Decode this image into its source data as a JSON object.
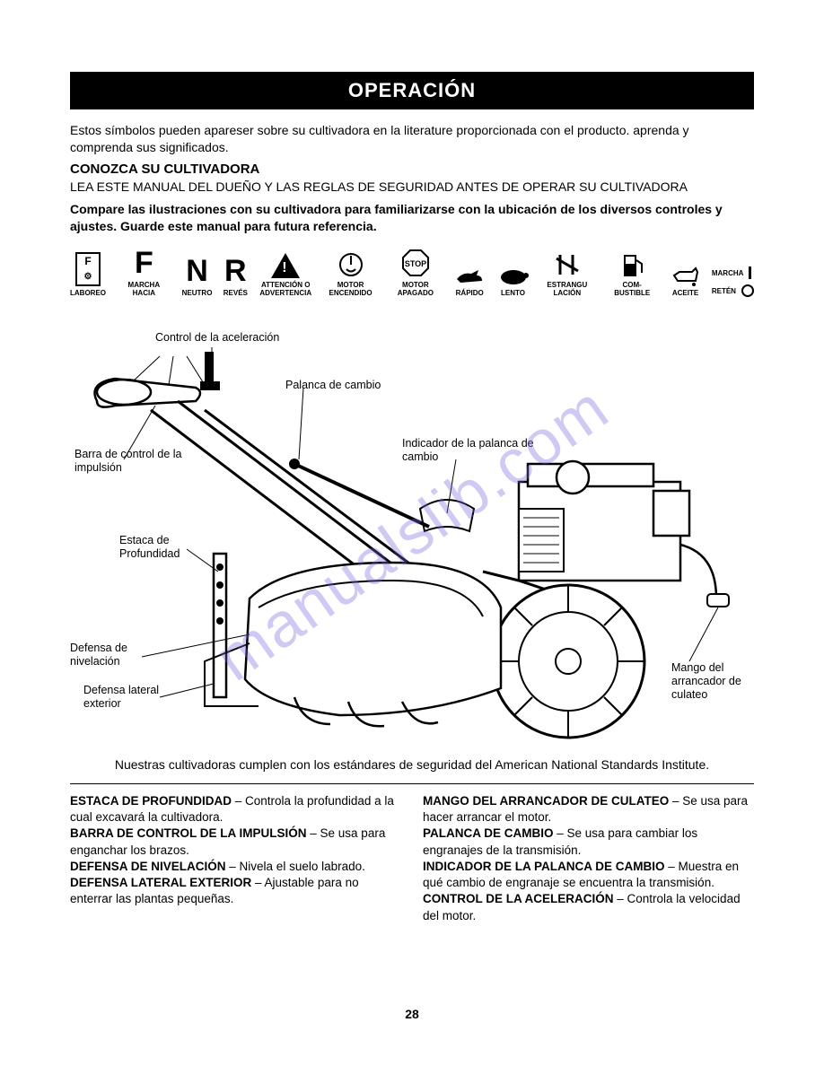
{
  "header": "OPERACIÓN",
  "intro": "Estos símbolos pueden apareser sobre su cultivadora en la literature proporcionada con el producto. aprenda y comprenda sus significados.",
  "section1_title": "CONOZCA SU CULTIVADORA",
  "section1_text": "LEA ESTE MANUAL DEL DUEÑO Y LAS REGLAS DE SEGURIDAD ANTES DE OPERAR SU CULTIVADORA",
  "section2_bold": "Compare las ilustraciones con su cultivadora para familiarizarse con la ubicación de los diversos controles y ajustes. Guarde este manual para futura referencia.",
  "symbols": {
    "laboreo": "LABOREO",
    "marcha_hacia": "MARCHA HACIA",
    "f": "F",
    "neutro": "NEUTRO",
    "n": "N",
    "reves": "REVÉS",
    "r": "R",
    "atencion": "ATTENCIÓN O ADVERTENCIA",
    "motor_enc": "MOTOR ENCENDIDO",
    "motor_apag": "MOTOR APAGADO",
    "stop": "STOP",
    "rapido": "RÁPIDO",
    "lento": "LENTO",
    "estrang": "ESTRANGU LACIÓN",
    "combust": "COM- BUSTIBLE",
    "aceite": "ACEITE",
    "marcha": "MARCHA",
    "reten": "RETÉN"
  },
  "diagram_labels": {
    "control_acel": "Control de la aceleración",
    "palanca": "Palanca de cambio",
    "barra": "Barra de control de la impulsión",
    "indicador": "Indicador de la palanca de cambio",
    "estaca": "Estaca de Profundidad",
    "defensa_niv": "Defensa de nivelación",
    "defensa_lat": "Defensa lateral exterior",
    "mango": "Mango del arrancador de culateo"
  },
  "compliance": "Nuestras cultivadoras cumplen con los estándares de seguridad del American National Standards Institute.",
  "definitions": {
    "left": [
      {
        "term": "ESTACA DE PROFUNDIDAD",
        "def": " – Controla la profundidad a la cual excavará la cultivadora."
      },
      {
        "term": "BARRA DE CONTROL DE LA IMPULSIÓN",
        "def": " – Se usa para enganchar los brazos."
      },
      {
        "term": "DEFENSA DE NIVELACIÓN",
        "def": " – Nivela el suelo labrado."
      },
      {
        "term": "DEFENSA LATERAL EXTERIOR",
        "def": " – Ajustable para no enterrar las plantas pequeñas."
      }
    ],
    "right": [
      {
        "term": "MANGO DEL ARRANCADOR DE CULATEO",
        "def": " – Se usa para hacer arrancar el motor."
      },
      {
        "term": "PALANCA DE CAMBIO",
        "def": " – Se usa para cambiar los engranajes de la transmisión."
      },
      {
        "term": "INDICADOR DE LA PALANCA DE CAMBIO",
        "def": " – Muestra en qué cambio de engranaje se encuentra la transmisión."
      },
      {
        "term": "CONTROL DE LA ACELERACIÓN",
        "def": " – Controla la velocidad del motor."
      }
    ]
  },
  "page_number": "28",
  "watermark": "manualslib.com"
}
